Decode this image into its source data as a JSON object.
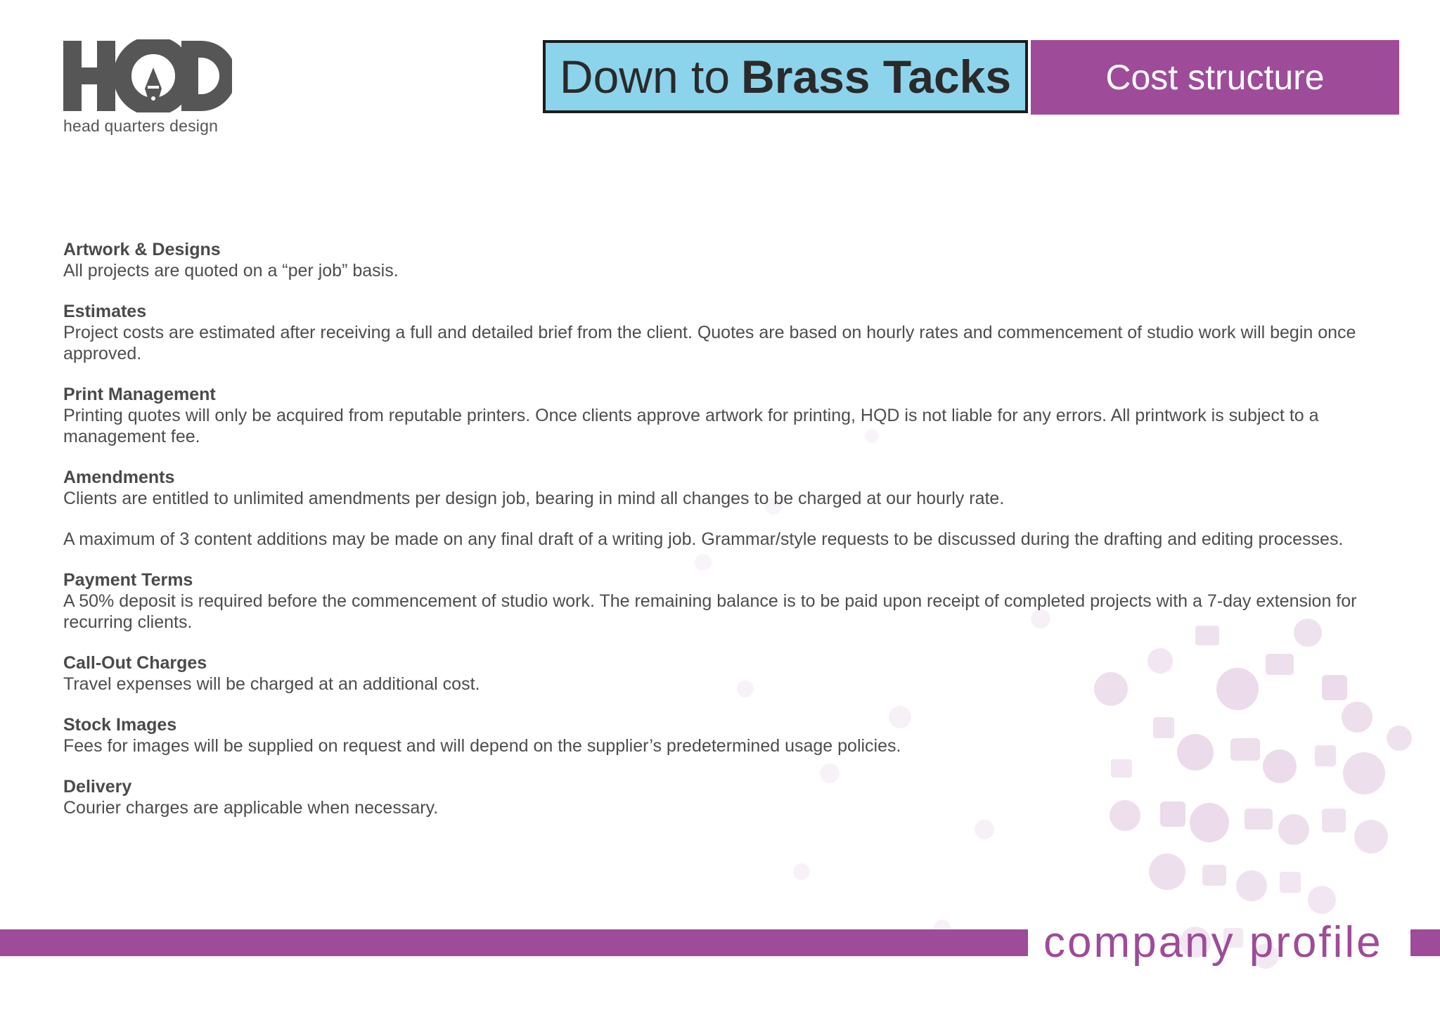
{
  "logo": {
    "letters": "HQD",
    "tagline": "head quarters design"
  },
  "header": {
    "title_regular": "Down to",
    "title_bold": "Brass Tacks",
    "section_label": "Cost structure"
  },
  "sections": [
    {
      "heading": "Artwork & Designs",
      "body": "All projects are quoted on a “per job” basis."
    },
    {
      "heading": "Estimates",
      "body": "Project costs are estimated after receiving a full and detailed brief from the client. Quotes are based on hourly rates and commencement of studio work will begin once approved."
    },
    {
      "heading": "Print Management",
      "body": "Printing quotes will only be acquired from reputable printers. Once clients approve artwork for printing, HQD is not liable for any errors. All printwork is subject to a management fee."
    },
    {
      "heading": "Amendments",
      "body": "Clients are entitled to unlimited amendments per design job, bearing in mind all changes to be charged at our hourly rate."
    },
    {
      "heading": "",
      "body": "A maximum of 3 content additions may be made on any final draft of a writing job. Grammar/style requests to be discussed during the drafting and editing processes."
    },
    {
      "heading": "Payment Terms",
      "body": "A 50% deposit is required before the commencement of studio work. The remaining balance is to be paid upon receipt of completed projects with a 7-day extension for recurring clients."
    },
    {
      "heading": "Call-Out Charges",
      "body": "Travel expenses will be charged at an additional cost."
    },
    {
      "heading": "Stock Images",
      "body": "Fees for images will be supplied on request and will depend on the supplier’s predetermined usage policies."
    },
    {
      "heading": "Delivery",
      "body": "Courier charges are applicable when necessary."
    }
  ],
  "footer": {
    "label": "company profile"
  },
  "colors": {
    "accent_purple": "#9e4b99",
    "accent_blue": "#8cd4ec",
    "text_gray": "#4d4d4d"
  }
}
